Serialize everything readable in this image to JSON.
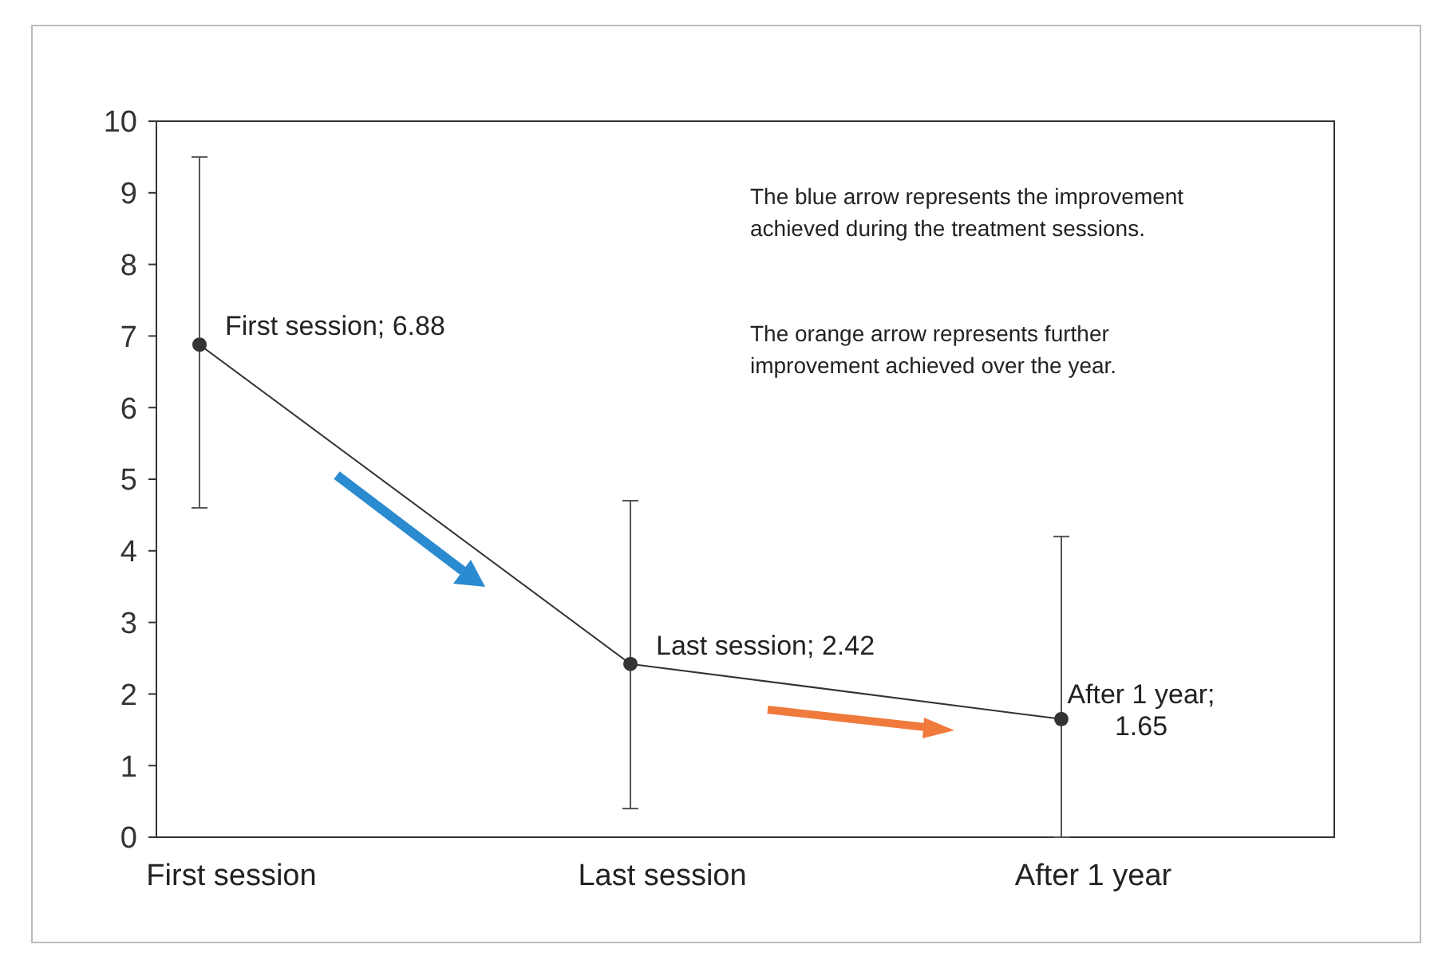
{
  "chart_data": {
    "type": "line",
    "categories": [
      "First session",
      "Last session",
      "After 1 year"
    ],
    "series": [
      {
        "color": "#333333",
        "values": [
          6.88,
          2.42,
          1.65
        ],
        "errors": [
          [
            4.6,
            9.5
          ],
          [
            0.4,
            4.7
          ],
          [
            0,
            4.2
          ]
        ],
        "value_labels": [
          "First session; 6.88",
          "Last session; 2.42",
          "After 1 year; 1.65"
        ]
      }
    ],
    "ylim": [
      0,
      10
    ],
    "yticks": [
      0,
      1,
      2,
      3,
      4,
      5,
      6,
      7,
      8,
      9,
      10
    ],
    "grid": false,
    "marker": "circle",
    "line_style": "solid",
    "annotations": [
      "The blue arrow represents the improvement achieved during the treatment sessions.",
      "The orange arrow represents further improvement achieved over the year."
    ]
  }
}
